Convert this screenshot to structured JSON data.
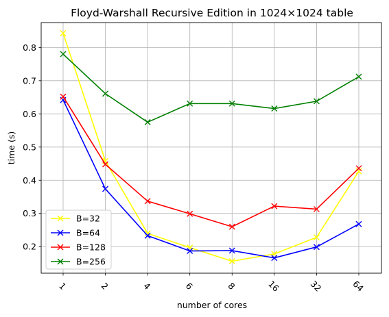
{
  "chart_data": {
    "type": "line",
    "title": "Floyd-Warshall Recursive Edition in 1024×1024 table",
    "xlabel": "number of cores",
    "ylabel": "time (s)",
    "categories": [
      "1",
      "2",
      "4",
      "6",
      "8",
      "16",
      "32",
      "64"
    ],
    "yticks": [
      "0.2",
      "0.3",
      "0.4",
      "0.5",
      "0.6",
      "0.7",
      "0.8"
    ],
    "ylim": [
      0.12,
      0.875
    ],
    "grid": true,
    "legend_position": "lower-left",
    "marker": "x",
    "series": [
      {
        "name": "B=32",
        "color": "#ffff00",
        "values": [
          0.843,
          0.458,
          0.24,
          0.197,
          0.156,
          0.178,
          0.228,
          0.427
        ]
      },
      {
        "name": "B=64",
        "color": "#0000ff",
        "values": [
          0.642,
          0.374,
          0.233,
          0.187,
          0.188,
          0.166,
          0.199,
          0.268
        ]
      },
      {
        "name": "B=128",
        "color": "#ff0000",
        "values": [
          0.652,
          0.448,
          0.337,
          0.299,
          0.26,
          0.322,
          0.313,
          0.436
        ]
      },
      {
        "name": "B=256",
        "color": "#008000",
        "values": [
          0.78,
          0.661,
          0.575,
          0.631,
          0.631,
          0.616,
          0.638,
          0.712
        ]
      }
    ]
  }
}
